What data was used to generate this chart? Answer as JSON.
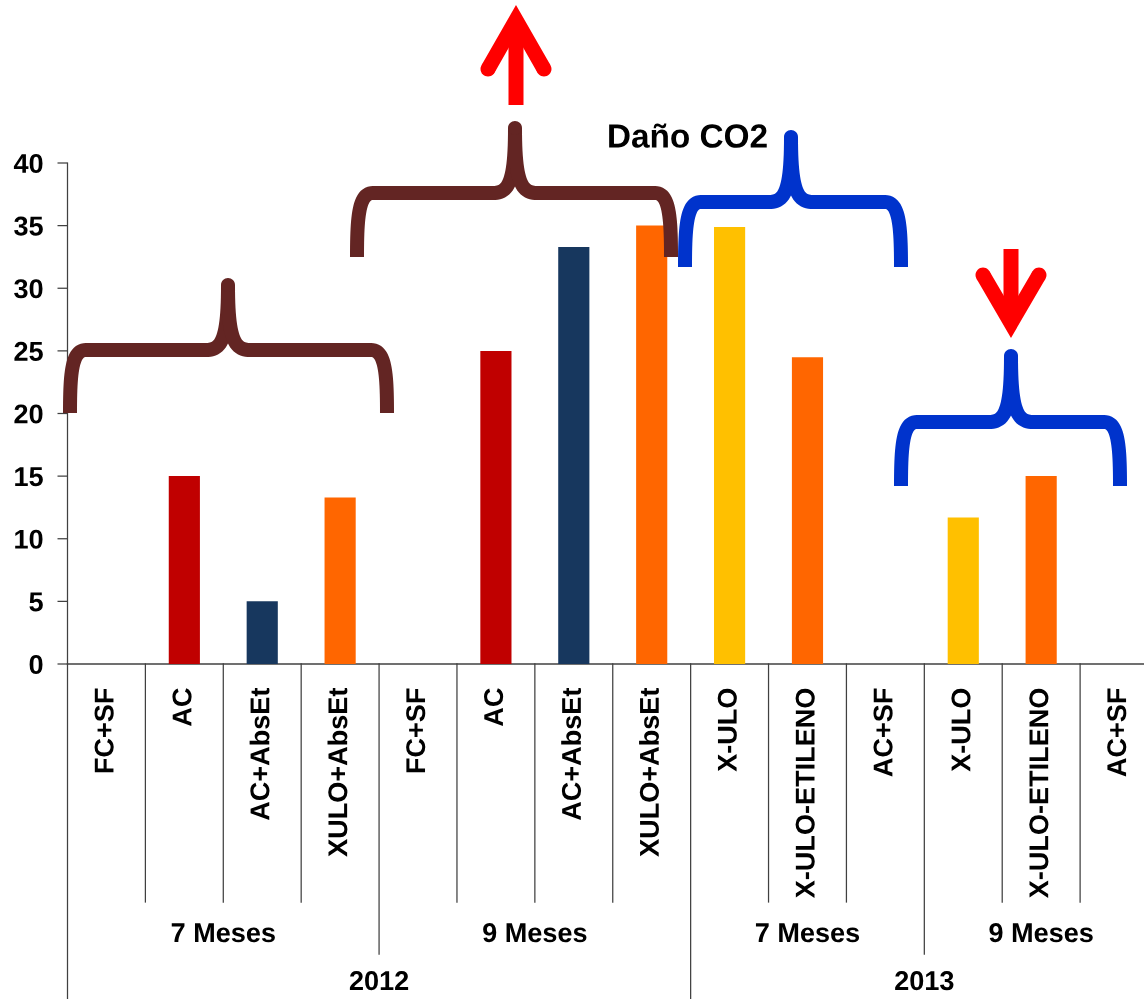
{
  "chart_data": {
    "type": "bar",
    "title": "Daño CO2",
    "categories": [
      "FC+SF",
      "AC",
      "AC+AbsEt",
      "XULO+AbsEt",
      "FC+SF",
      "AC",
      "AC+AbsEt",
      "XULO+AbsEt",
      "X-ULO",
      "X-ULO-ETILENO",
      "AC+SF",
      "X-ULO",
      "X-ULO-ETILENO",
      "AC+SF"
    ],
    "values": [
      0,
      15,
      5,
      13.3,
      0,
      25,
      33.3,
      35,
      34.9,
      24.5,
      0,
      11.7,
      15,
      0
    ],
    "colors": [
      "#c00000",
      "#c00000",
      "#17375e",
      "#ff6600",
      "#c00000",
      "#c00000",
      "#17375e",
      "#ff6600",
      "#ffc000",
      "#ff6600",
      "#c00000",
      "#ffc000",
      "#ff6600",
      "#c00000"
    ],
    "ylim": [
      0,
      40
    ],
    "yticks": [
      0,
      5,
      10,
      15,
      20,
      25,
      30,
      35,
      40
    ],
    "annotations": [
      "7 Meses",
      "9 Meses",
      "7 Meses",
      "9 Meses",
      "2012",
      "2013"
    ]
  }
}
